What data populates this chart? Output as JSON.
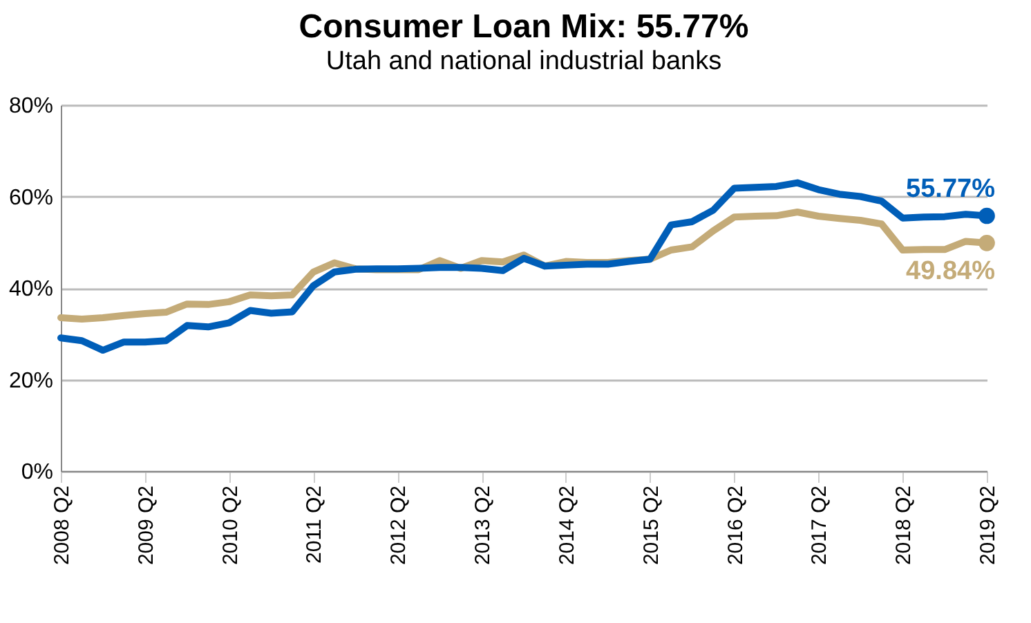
{
  "chart_data": {
    "type": "line",
    "title": "Consumer Loan Mix: 55.77%",
    "subtitle": "Utah and national industrial banks",
    "categories": [
      "2008 Q2",
      null,
      null,
      null,
      "2009 Q2",
      null,
      null,
      null,
      "2010 Q2",
      null,
      null,
      null,
      "2011 Q2",
      null,
      null,
      null,
      "2012 Q2",
      null,
      null,
      null,
      "2013 Q2",
      null,
      null,
      null,
      "2014 Q2",
      null,
      null,
      null,
      "2015 Q2",
      null,
      null,
      null,
      "2016 Q2",
      null,
      null,
      null,
      "2017 Q2",
      null,
      null,
      null,
      "2018 Q2",
      null,
      null,
      null,
      "2019 Q2"
    ],
    "series": [
      {
        "color": "#c4ab78",
        "values": [
          33.5,
          33.2,
          33.5,
          34.0,
          34.4,
          34.7,
          36.5,
          36.4,
          37.0,
          38.5,
          38.3,
          38.5,
          43.5,
          45.5,
          44.2,
          44.0,
          44.0,
          44.0,
          46.0,
          44.3,
          46.0,
          45.7,
          47.2,
          44.8,
          45.8,
          45.6,
          45.6,
          46.0,
          46.3,
          48.3,
          49.0,
          52.5,
          55.5,
          55.7,
          55.8,
          56.6,
          55.7,
          55.2,
          54.8,
          54.0,
          48.3,
          48.4,
          48.4,
          50.2,
          49.84
        ],
        "value_labels": [
          null,
          null,
          null,
          null,
          null,
          null,
          null,
          null,
          null,
          null,
          null,
          null,
          null,
          null,
          null,
          null,
          null,
          null,
          null,
          null,
          null,
          null,
          null,
          null,
          null,
          null,
          null,
          null,
          null,
          null,
          null,
          null,
          null,
          null,
          null,
          null,
          null,
          null,
          null,
          null,
          null,
          null,
          null,
          null,
          "49.84%"
        ]
      },
      {
        "color": "#005eb8",
        "values": [
          29.1,
          28.5,
          26.4,
          28.2,
          28.2,
          28.5,
          31.8,
          31.5,
          32.4,
          35.1,
          34.5,
          34.8,
          40.5,
          43.5,
          44.1,
          44.2,
          44.2,
          44.3,
          44.5,
          44.5,
          44.3,
          43.8,
          46.5,
          44.8,
          45.0,
          45.2,
          45.2,
          45.8,
          46.3,
          53.8,
          54.5,
          57.0,
          61.8,
          62.0,
          62.2,
          63.0,
          61.5,
          60.5,
          60.0,
          59.0,
          55.3,
          55.5,
          55.6,
          56.1,
          55.77
        ],
        "value_labels": [
          null,
          null,
          null,
          null,
          null,
          null,
          null,
          null,
          null,
          null,
          null,
          null,
          null,
          null,
          null,
          null,
          null,
          null,
          null,
          null,
          null,
          null,
          null,
          null,
          null,
          null,
          null,
          null,
          null,
          null,
          null,
          null,
          null,
          null,
          null,
          null,
          null,
          null,
          null,
          null,
          null,
          null,
          null,
          null,
          "55.77%"
        ]
      }
    ],
    "ylim": [
      0,
      80
    ],
    "yticks": [
      {
        "value": 0,
        "label": "0%"
      },
      {
        "value": 20,
        "label": "20%"
      },
      {
        "value": 40,
        "label": "40%"
      },
      {
        "value": 60,
        "label": "60%"
      },
      {
        "value": 80,
        "label": "80%"
      }
    ],
    "grid": "y",
    "marker": "none",
    "line_style": "solid"
  }
}
